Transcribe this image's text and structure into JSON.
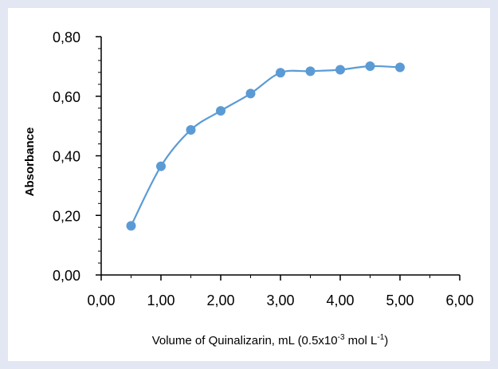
{
  "chart_data": {
    "type": "line",
    "xlabel": {
      "prefix": "Volume of Quinalizarin, mL (0.5x10",
      "sup1": "-3",
      "middle": " mol L",
      "sup2": "-1",
      "suffix": ")"
    },
    "ylabel": "Absorbance",
    "x": [
      0.5,
      1.0,
      1.5,
      2.0,
      2.5,
      3.0,
      3.5,
      4.0,
      4.5,
      5.0
    ],
    "series": [
      {
        "values": [
          0.165,
          0.365,
          0.487,
          0.551,
          0.609,
          0.679,
          0.684,
          0.689,
          0.701,
          0.697
        ]
      }
    ],
    "xlim": [
      0,
      6
    ],
    "ylim": [
      0,
      0.8
    ],
    "xticks": [
      0,
      1,
      2,
      3,
      4,
      5,
      6
    ],
    "xtick_labels": [
      "0,00",
      "1,00",
      "2,00",
      "3,00",
      "4,00",
      "5,00",
      "6,00"
    ],
    "yticks": [
      0,
      0.2,
      0.4,
      0.6,
      0.8
    ],
    "ytick_labels": [
      "0,00",
      "0,20",
      "0,40",
      "0,60",
      "0,80"
    ],
    "line_style": "smooth",
    "marker": "circle",
    "grid": false,
    "colors": {
      "series": "#5b9bd5",
      "axis": "#000000",
      "background": "#ffffff",
      "border": "#e3e7f3"
    }
  }
}
